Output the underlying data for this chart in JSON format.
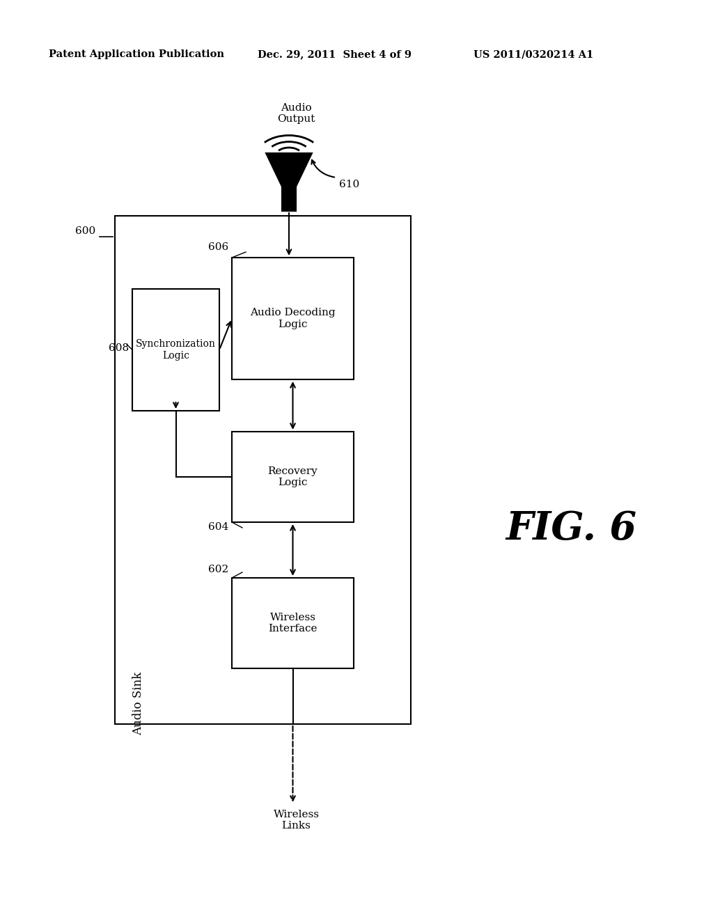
{
  "header_left": "Patent Application Publication",
  "header_mid": "Dec. 29, 2011  Sheet 4 of 9",
  "header_right": "US 2011/0320214 A1",
  "fig_label": "FIG. 6",
  "outer_box_label": "600",
  "outer_box_side_label": "Audio Sink",
  "box_602_label": "602",
  "box_602_text": "Wireless\nInterface",
  "box_604_label": "604",
  "box_604_text": "Recovery\nLogic",
  "box_606_label": "606",
  "box_606_text": "Audio Decoding\nLogic",
  "box_608_label": "608",
  "box_608_text": "Synchronization\nLogic",
  "speaker_label": "610",
  "audio_output_label": "Audio\nOutput",
  "wireless_links_label": "Wireless\nLinks",
  "bg_color": "#ffffff",
  "box_color": "#ffffff",
  "box_edge_color": "#000000",
  "line_color": "#000000"
}
